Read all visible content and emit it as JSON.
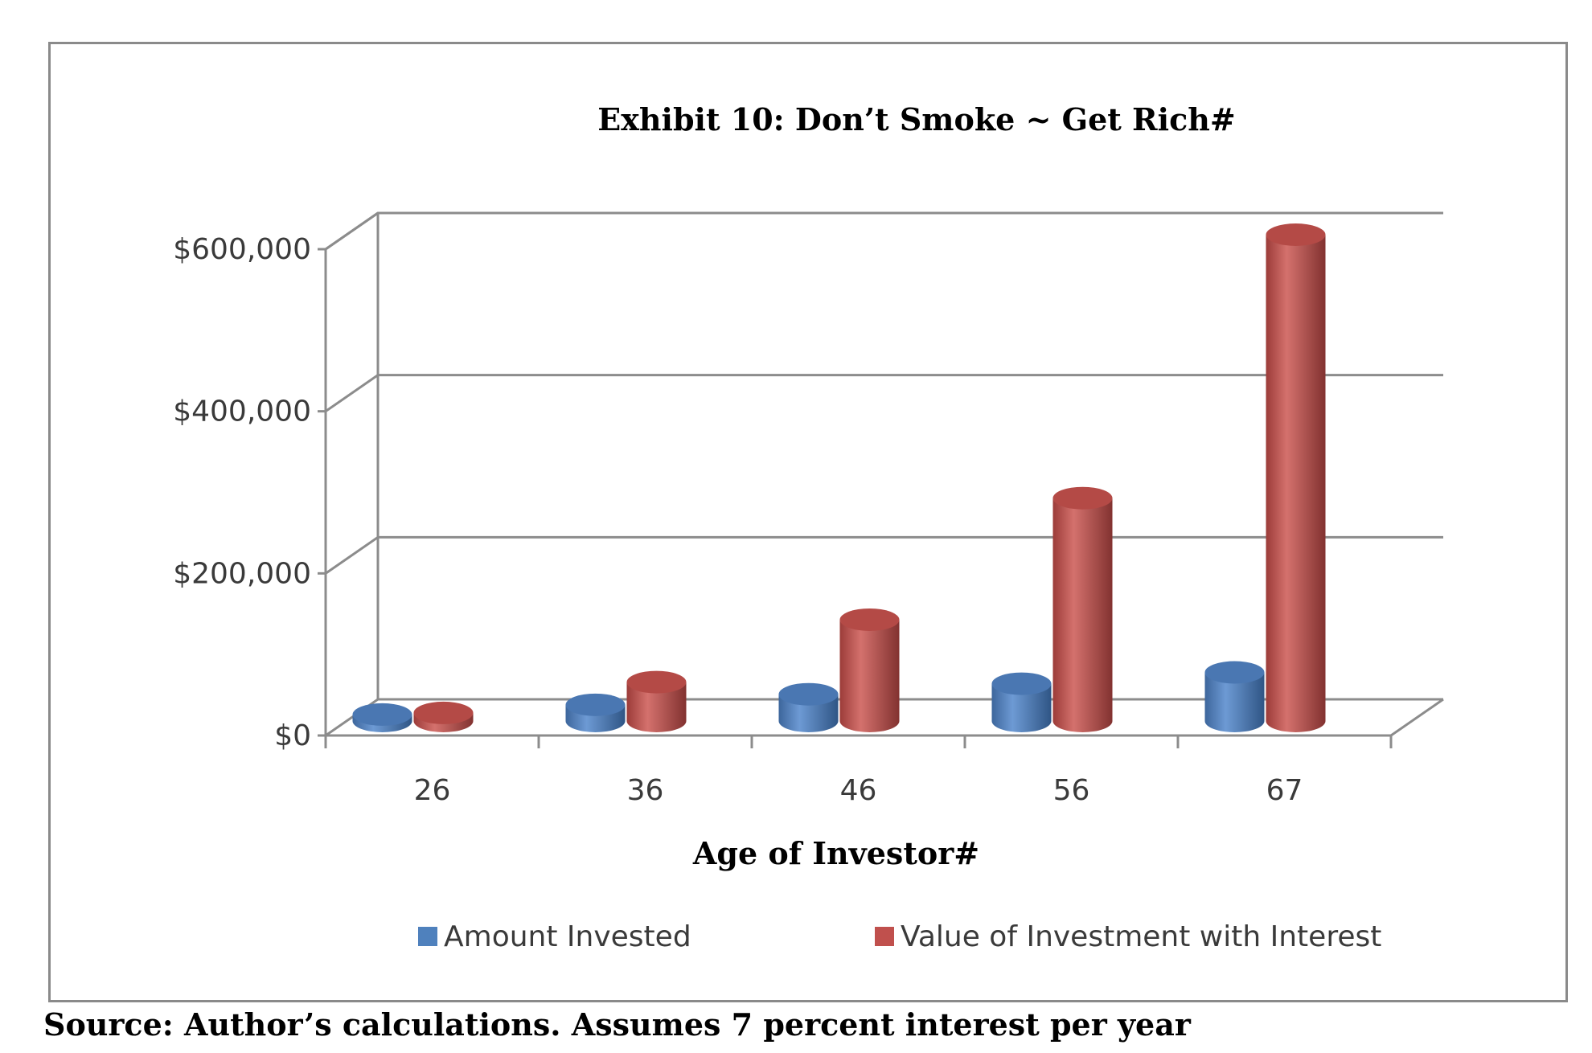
{
  "chart_data": {
    "type": "bar",
    "title": "Exhibit 10: Don’t Smoke ~ Get Rich#",
    "xlabel": "Age of Investor#",
    "ylabel": "",
    "categories": [
      "26",
      "36",
      "46",
      "56",
      "67"
    ],
    "series": [
      {
        "name": "Amount Invested",
        "color": "#4f81bd",
        "values": [
          8000,
          20000,
          33000,
          46000,
          60000
        ]
      },
      {
        "name": "Value of Investment with Interest",
        "color": "#c0504d",
        "values": [
          10000,
          48000,
          125000,
          275000,
          600000
        ]
      }
    ],
    "ylim": [
      0,
      600000
    ],
    "y_ticks": [
      0,
      200000,
      400000,
      600000
    ],
    "y_tick_labels": [
      "$0",
      "$200,000",
      "$400,000",
      "$600,000"
    ],
    "grid": true,
    "legend": "bottom",
    "style": "3d-cylinder"
  },
  "source_note": "Source: Author’s calculations. Assumes 7 percent interest per year"
}
